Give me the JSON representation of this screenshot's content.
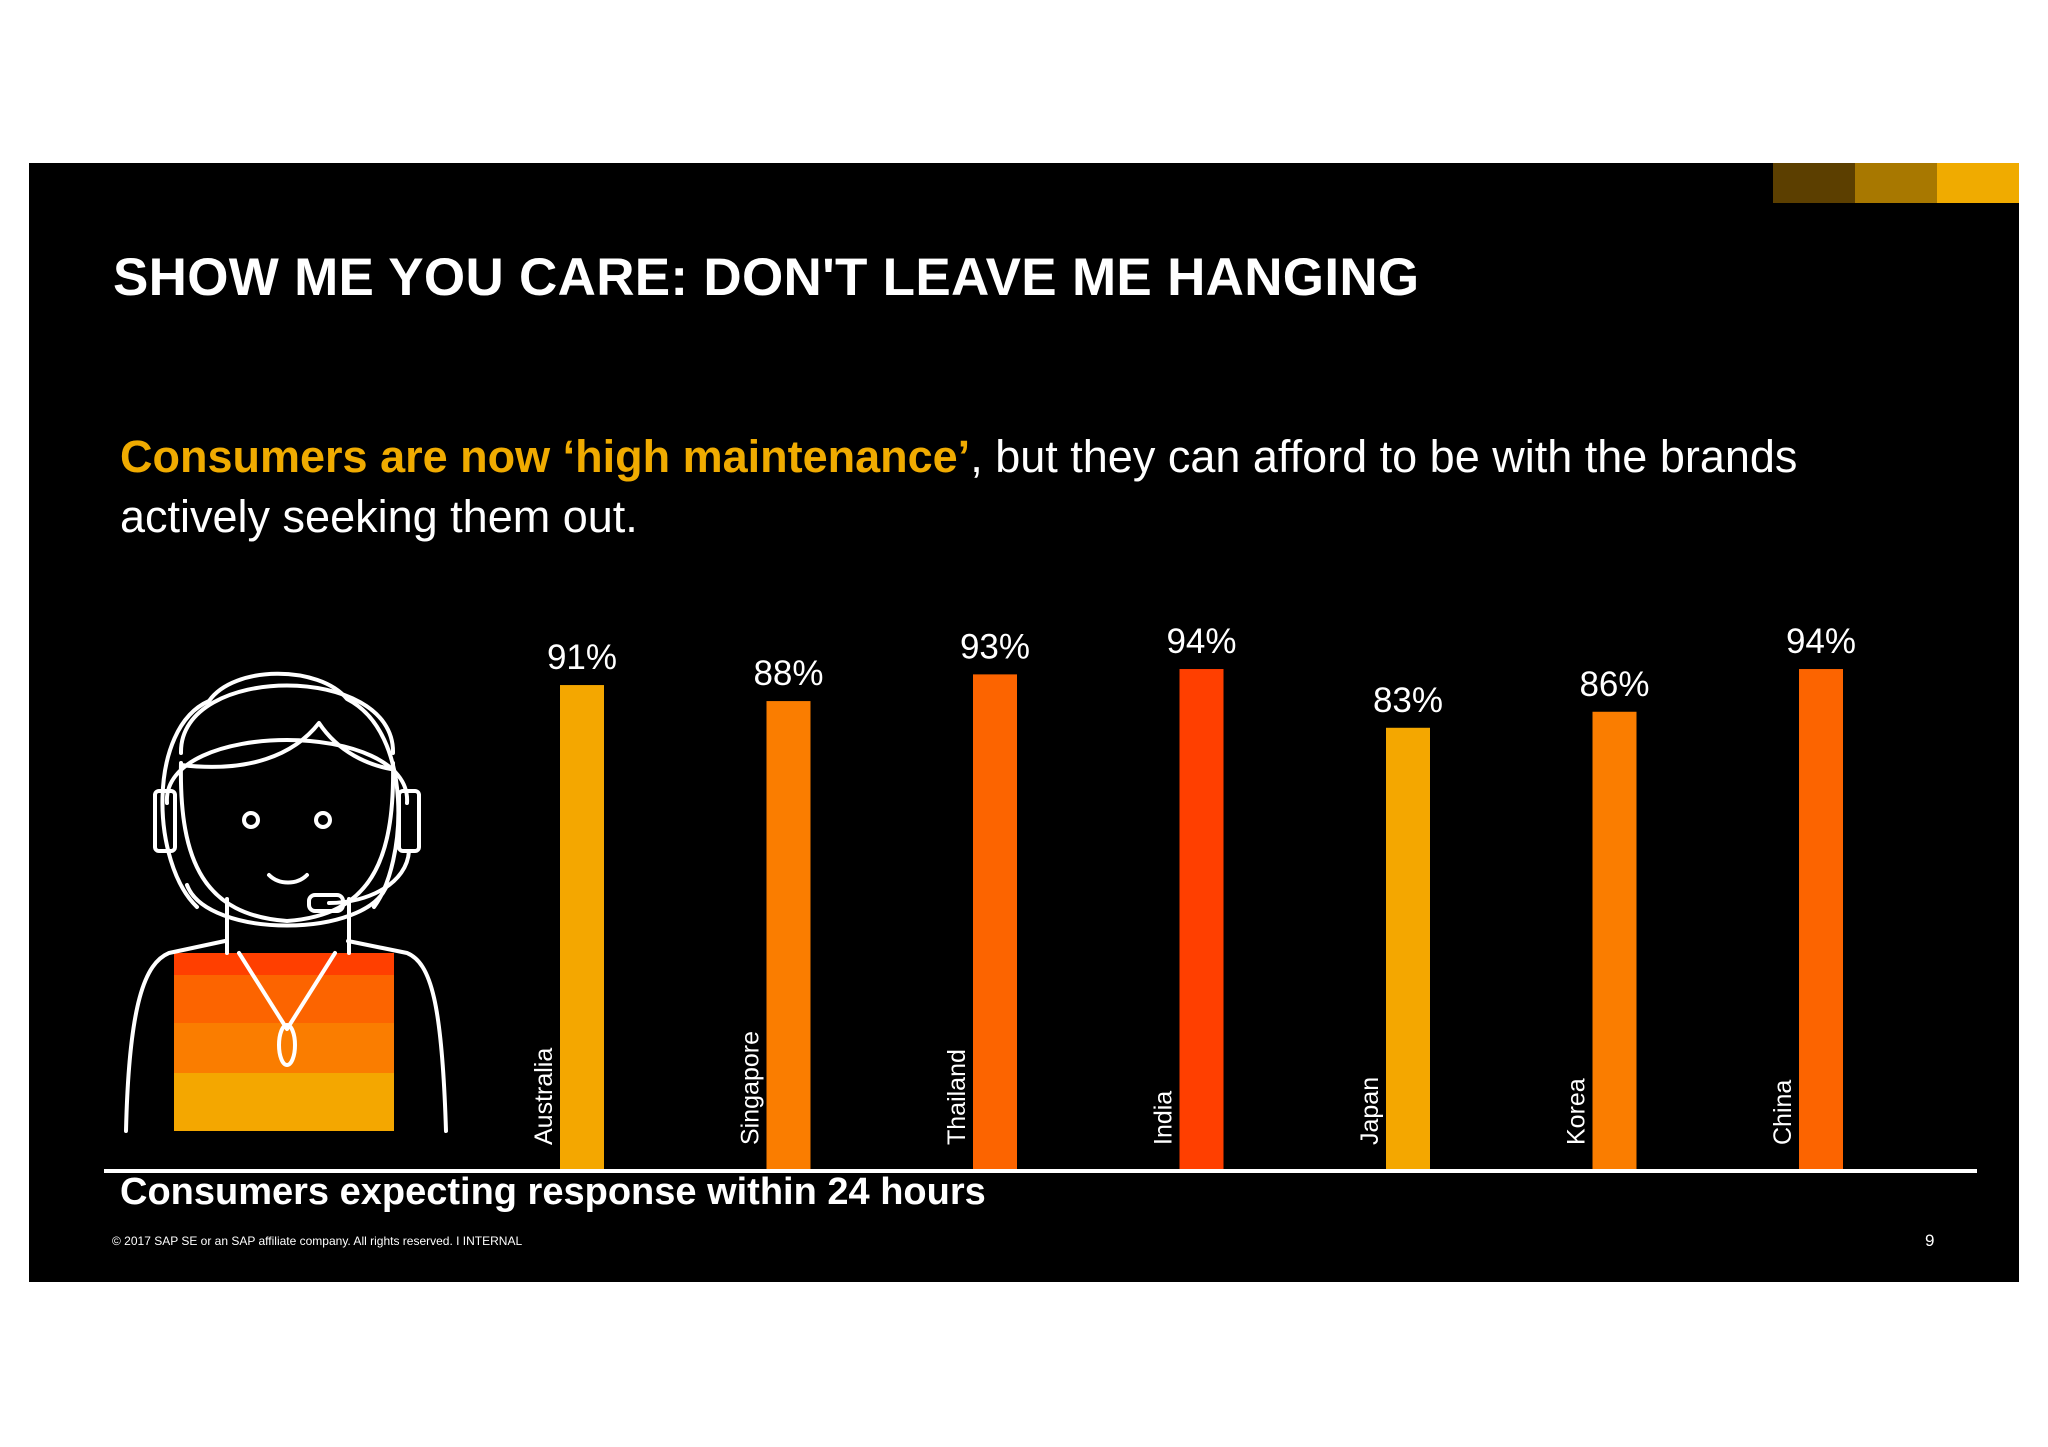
{
  "slide": {
    "title": "SHOW ME YOU CARE: DON'T LEAVE ME HANGING",
    "subtitle_highlight": "Consumers are now ‘high maintenance’",
    "subtitle_rest": ", but they can afford to be with the brands actively seeking them out.",
    "caption": "Consumers expecting response within 24 hours",
    "footer": "© 2017 SAP SE or an SAP affiliate company. All rights reserved.  I   INTERNAL",
    "page_number": "9",
    "corner_colors": [
      "#5c3f00",
      "#a87800",
      "#f0ab00"
    ]
  },
  "illustration": {
    "icon": "customer-service-agent-with-headset-icon"
  },
  "chart_data": {
    "type": "bar",
    "title": "",
    "xlabel": "Consumers expecting response within 24 hours",
    "ylabel": "",
    "categories": [
      "Australia",
      "Singapore",
      "Thailand",
      "India",
      "Japan",
      "Korea",
      "China"
    ],
    "values": [
      91,
      88,
      93,
      94,
      83,
      86,
      94
    ],
    "labels": [
      "91%",
      "88%",
      "93%",
      "94%",
      "83%",
      "86%",
      "94%"
    ],
    "colors": [
      "#f4a700",
      "#fa7d00",
      "#fc6400",
      "#ff3f00",
      "#f4a700",
      "#fa7d00",
      "#fc6400"
    ],
    "ylim": [
      0,
      100
    ],
    "grid": false,
    "legend": "none"
  }
}
